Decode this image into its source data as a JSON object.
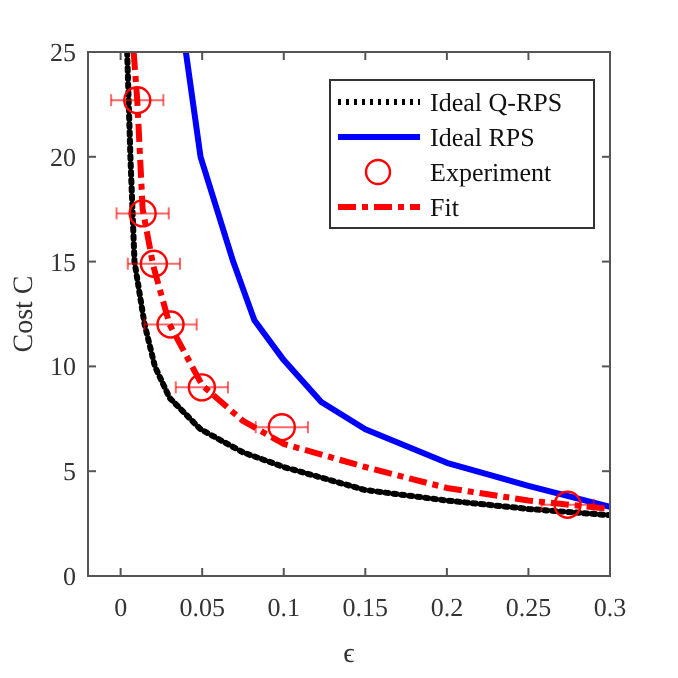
{
  "chart_data": {
    "type": "line",
    "xlabel": "ϵ",
    "ylabel": "Cost C",
    "xlim": [
      -0.02,
      0.3
    ],
    "ylim": [
      0,
      25
    ],
    "xticks": [
      0,
      0.05,
      0.1,
      0.15,
      0.2,
      0.25,
      0.3
    ],
    "yticks": [
      0,
      5,
      10,
      15,
      20,
      25
    ],
    "grid": false,
    "legend": "top right",
    "series": [
      {
        "name": "Ideal Q-RPS",
        "color": "#000000",
        "line_style": "dotted",
        "marker": "none",
        "x": [
          0.004,
          0.006,
          0.0085,
          0.0147,
          0.021,
          0.03,
          0.049,
          0.075,
          0.1,
          0.15,
          0.2,
          0.25,
          0.3
        ],
        "values": [
          25,
          20,
          15,
          12,
          10,
          8.5,
          7,
          5.9,
          5.2,
          4.1,
          3.6,
          3.2,
          2.9
        ]
      },
      {
        "name": "Ideal RPS",
        "color": "#0000ff",
        "line_style": "solid",
        "marker": "none",
        "x": [
          0.04,
          0.049,
          0.069,
          0.082,
          0.1,
          0.123,
          0.15,
          0.2,
          0.25,
          0.3
        ],
        "values": [
          25,
          20,
          15,
          12.2,
          10.3,
          8.3,
          7,
          5.4,
          4.3,
          3.3
        ]
      },
      {
        "name": "Experiment",
        "type": "scatter",
        "color": "#ff0000",
        "marker": "circle",
        "x": [
          0.0102,
          0.0135,
          0.0204,
          0.0306,
          0.0498,
          0.0988,
          0.274
        ],
        "values": [
          22.7,
          17.3,
          14.9,
          12,
          9,
          7.1,
          3.4
        ],
        "xerrors": [
          0.016,
          0.016,
          0.016,
          0.016,
          0.016,
          0.016,
          0.016
        ]
      },
      {
        "name": "Fit",
        "color": "#ff0000",
        "line_style": "dashdot",
        "marker": "none",
        "x": [
          0.008,
          0.0102,
          0.0135,
          0.02,
          0.03,
          0.05,
          0.075,
          0.1,
          0.15,
          0.2,
          0.25,
          0.3
        ],
        "values": [
          25,
          22.7,
          17.5,
          14.8,
          12,
          9.1,
          7.4,
          6.3,
          5.2,
          4.2,
          3.6,
          3.2
        ]
      }
    ]
  }
}
